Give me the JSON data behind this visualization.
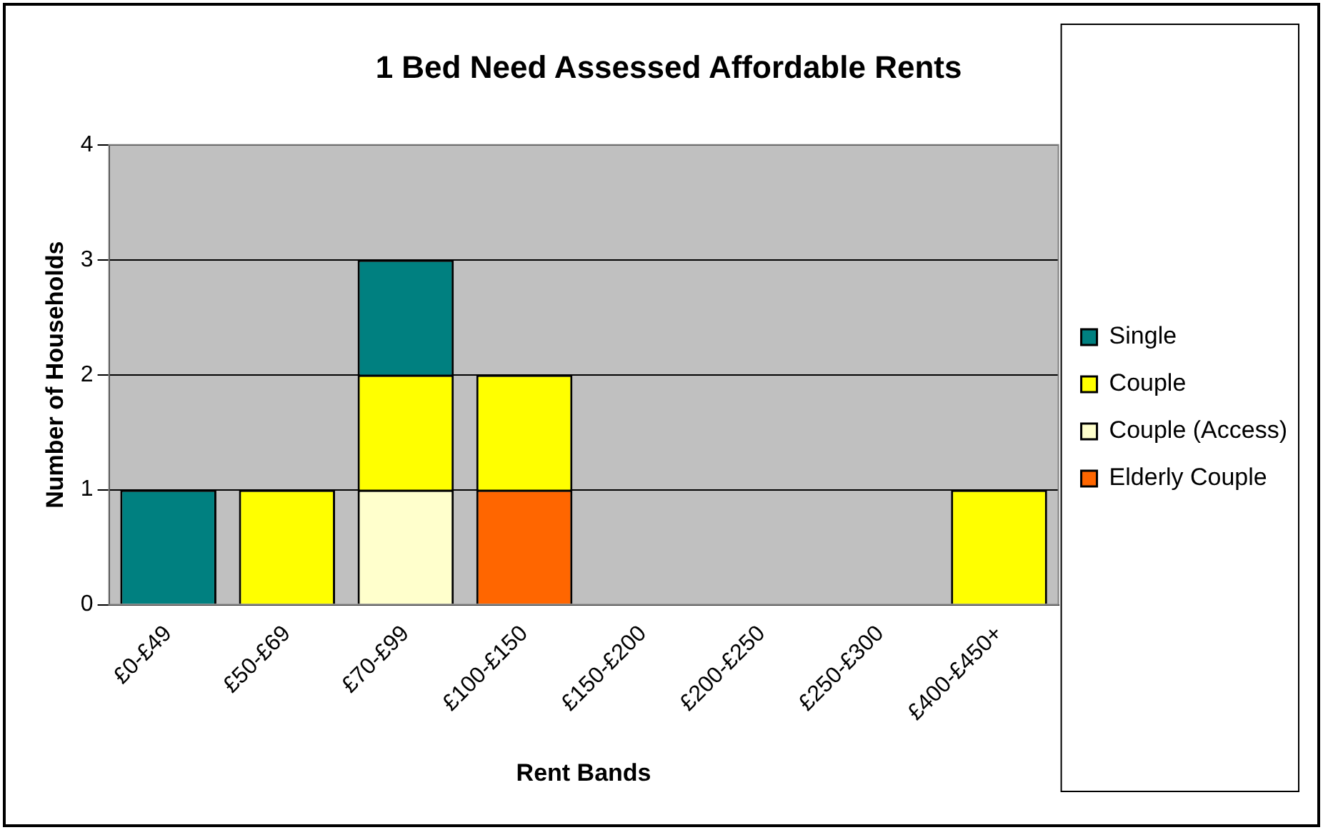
{
  "chart_data": {
    "type": "bar",
    "title": "1 Bed Need Assessed Affordable Rents",
    "xlabel": "Rent Bands",
    "ylabel": "Number of Households",
    "categories": [
      "£0-£49",
      "£50-£69",
      "£70-£99",
      "£100-£150",
      "£150-£200",
      "£200-£250",
      "£250-£300",
      "£400-£450+"
    ],
    "stacked": true,
    "series": [
      {
        "name": "Elderly Couple",
        "color": "#ff6600",
        "values": [
          0,
          0,
          0,
          1,
          0,
          0,
          0,
          0
        ]
      },
      {
        "name": "Couple (Access)",
        "color": "#ffffcc",
        "values": [
          0,
          0,
          1,
          0,
          0,
          0,
          0,
          0
        ]
      },
      {
        "name": "Couple",
        "color": "#ffff00",
        "values": [
          0,
          1,
          1,
          1,
          0,
          0,
          0,
          1
        ]
      },
      {
        "name": "Single",
        "color": "#008080",
        "values": [
          1,
          0,
          1,
          0,
          0,
          0,
          0,
          0
        ]
      }
    ],
    "ylim": [
      0,
      4
    ],
    "yticks": [
      0,
      1,
      2,
      3,
      4
    ],
    "grid": "y",
    "legend": "right"
  }
}
